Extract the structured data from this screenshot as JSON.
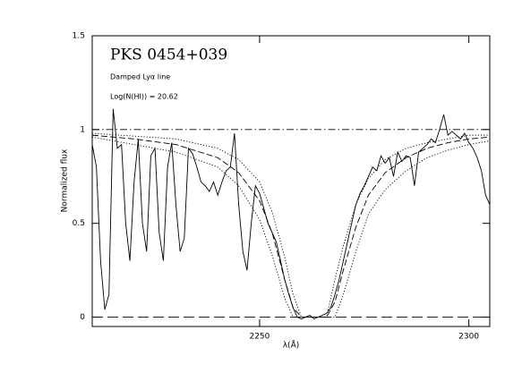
{
  "chart_data": {
    "type": "line",
    "title": "PKS 0454+039",
    "annotations": [
      "Damped Lyα line",
      "Log(N(HI)) = 20.62"
    ],
    "x_label": "λ(Å)",
    "y_label": "Normalized flux",
    "xlim": [
      2210,
      2305
    ],
    "ylim": [
      -0.05,
      1.5
    ],
    "xticks": [
      2250,
      2300
    ],
    "yticks": [
      0,
      0.5,
      1,
      1.5
    ],
    "series": [
      {
        "color": "#000000",
        "style": "solid",
        "x": [
          2210,
          2211,
          2212,
          2213,
          2214,
          2215,
          2216,
          2217,
          2218,
          2219,
          2220,
          2221,
          2222,
          2223,
          2224,
          2225,
          2226,
          2227,
          2228,
          2229,
          2230,
          2231,
          2232,
          2233,
          2234,
          2235,
          2236,
          2237,
          2238,
          2239,
          2240,
          2241,
          2242,
          2243,
          2244,
          2245,
          2246,
          2247,
          2248,
          2249,
          2250,
          2251,
          2252,
          2253,
          2254,
          2255,
          2256,
          2257,
          2258,
          2259,
          2260,
          2261,
          2262,
          2263,
          2264,
          2265,
          2266,
          2267,
          2268,
          2269,
          2270,
          2271,
          2272,
          2273,
          2274,
          2275,
          2276,
          2277,
          2278,
          2279,
          2280,
          2281,
          2282,
          2283,
          2284,
          2285,
          2286,
          2287,
          2288,
          2289,
          2290,
          2291,
          2292,
          2293,
          2294,
          2295,
          2296,
          2297,
          2298,
          2299,
          2300,
          2301,
          2302,
          2303,
          2304,
          2305
        ],
        "values": [
          0.92,
          0.8,
          0.3,
          0.04,
          0.12,
          1.11,
          0.9,
          0.92,
          0.5,
          0.3,
          0.72,
          0.95,
          0.5,
          0.35,
          0.86,
          0.9,
          0.45,
          0.3,
          0.8,
          0.93,
          0.6,
          0.35,
          0.42,
          0.9,
          0.87,
          0.8,
          0.72,
          0.7,
          0.67,
          0.72,
          0.65,
          0.72,
          0.78,
          0.8,
          0.98,
          0.6,
          0.35,
          0.25,
          0.5,
          0.7,
          0.66,
          0.58,
          0.5,
          0.45,
          0.4,
          0.3,
          0.2,
          0.12,
          0.05,
          0.0,
          -0.01,
          0.0,
          0.01,
          -0.01,
          0.0,
          0.01,
          0.02,
          0.05,
          0.12,
          0.2,
          0.3,
          0.4,
          0.5,
          0.6,
          0.66,
          0.7,
          0.75,
          0.8,
          0.78,
          0.86,
          0.82,
          0.85,
          0.75,
          0.88,
          0.83,
          0.86,
          0.85,
          0.7,
          0.88,
          0.9,
          0.92,
          0.95,
          0.93,
          1.0,
          1.08,
          0.97,
          0.99,
          0.97,
          0.95,
          0.98,
          0.93,
          0.9,
          0.85,
          0.78,
          0.65,
          0.6
        ]
      },
      {
        "color": "#000000",
        "style": "dashed",
        "x": [
          2210,
          2220,
          2230,
          2240,
          2245,
          2250,
          2253,
          2256,
          2258,
          2260,
          2263,
          2266,
          2268,
          2270,
          2273,
          2276,
          2280,
          2285,
          2290,
          2295,
          2300,
          2305
        ],
        "values": [
          0.97,
          0.95,
          0.92,
          0.85,
          0.77,
          0.62,
          0.45,
          0.2,
          0.05,
          0.0,
          0.0,
          0.0,
          0.08,
          0.25,
          0.48,
          0.65,
          0.77,
          0.85,
          0.9,
          0.93,
          0.95,
          0.96
        ]
      },
      {
        "color": "#000000",
        "style": "dotted",
        "x": [
          2210,
          2230,
          2240,
          2245,
          2250,
          2253,
          2256,
          2258,
          2268,
          2270,
          2273,
          2276,
          2280,
          2285,
          2290,
          2295,
          2300,
          2305
        ],
        "values": [
          0.96,
          0.88,
          0.8,
          0.7,
          0.52,
          0.33,
          0.1,
          0.0,
          0.0,
          0.12,
          0.35,
          0.55,
          0.68,
          0.78,
          0.85,
          0.89,
          0.92,
          0.94
        ]
      },
      {
        "color": "#000000",
        "style": "dotted",
        "x": [
          2210,
          2230,
          2240,
          2245,
          2250,
          2253,
          2256,
          2258,
          2260,
          2266,
          2268,
          2270,
          2273,
          2276,
          2280,
          2285,
          2290,
          2295,
          2300,
          2305
        ],
        "values": [
          0.98,
          0.95,
          0.9,
          0.84,
          0.72,
          0.56,
          0.32,
          0.12,
          0.0,
          0.0,
          0.2,
          0.38,
          0.6,
          0.74,
          0.84,
          0.9,
          0.93,
          0.95,
          0.97,
          0.97
        ]
      },
      {
        "color": "#000000",
        "style": "dashdot",
        "x": [
          2210,
          2305
        ],
        "values": [
          1,
          1
        ]
      },
      {
        "color": "#000000",
        "style": "longdash",
        "x": [
          2210,
          2305
        ],
        "values": [
          0,
          0
        ]
      }
    ]
  }
}
